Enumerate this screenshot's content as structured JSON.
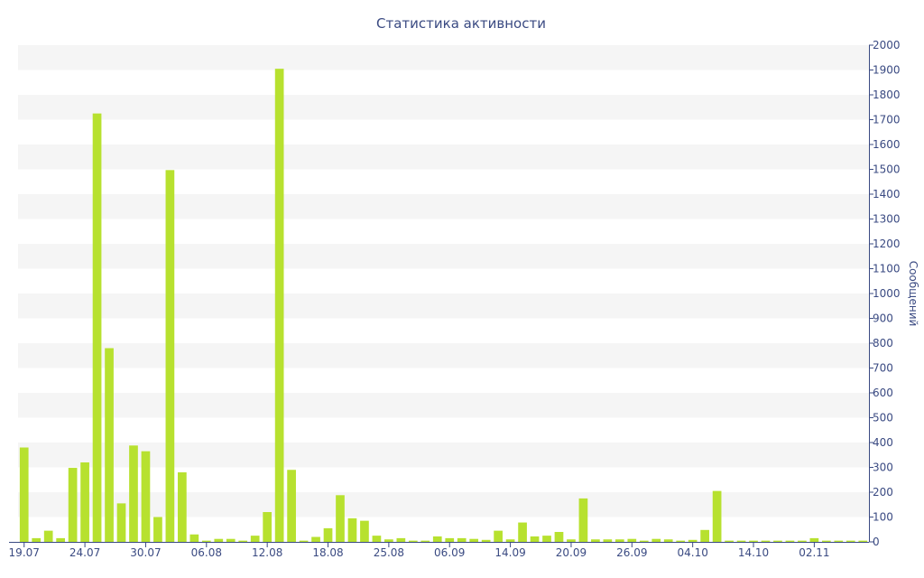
{
  "chart_data": {
    "type": "bar",
    "title": "Статистика активности",
    "ylabel": "Сообщений",
    "xlabel": "",
    "ylim": [
      0,
      2000
    ],
    "y_ticks": [
      0,
      100,
      200,
      300,
      400,
      500,
      600,
      700,
      800,
      900,
      1000,
      1100,
      1200,
      1300,
      1400,
      1500,
      1600,
      1700,
      1800,
      1900,
      2000
    ],
    "y_axis_side": "right",
    "grid": "horizontal alternating bands",
    "legend": "none",
    "x_tick_labels": [
      "19.07",
      "24.07",
      "30.07",
      "06.08",
      "12.08",
      "18.08",
      "25.08",
      "06.09",
      "14.09",
      "20.09",
      "26.09",
      "04.10",
      "14.10",
      "02.11"
    ],
    "tick_every": 5,
    "values": [
      380,
      15,
      45,
      15,
      298,
      320,
      1725,
      780,
      155,
      388,
      365,
      100,
      1497,
      280,
      30,
      5,
      12,
      12,
      5,
      25,
      120,
      1905,
      290,
      5,
      20,
      55,
      188,
      95,
      85,
      25,
      10,
      15,
      5,
      5,
      22,
      15,
      15,
      12,
      8,
      45,
      10,
      78,
      22,
      25,
      40,
      10,
      175,
      10,
      10,
      10,
      12,
      5,
      12,
      10,
      5,
      8,
      48,
      205,
      5,
      5,
      5,
      5,
      5,
      5,
      5,
      15,
      5,
      5,
      5,
      5
    ],
    "colors": {
      "bar": "#b7e12f",
      "band": "#f5f5f5",
      "axis": "#3a4a82",
      "text": "#3a4a82"
    }
  }
}
